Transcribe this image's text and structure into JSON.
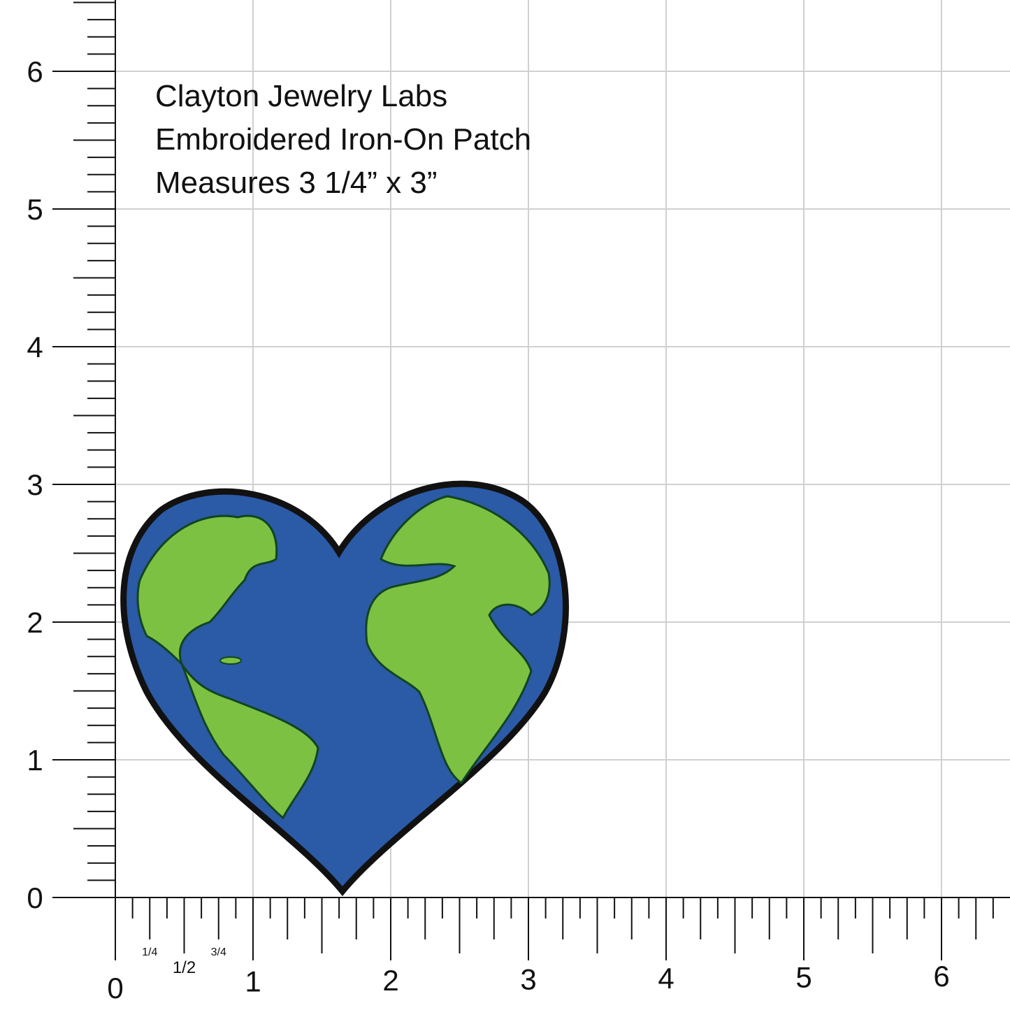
{
  "caption": {
    "lines": [
      "Clayton Jewelry Labs",
      "Embroidered Iron-On Patch",
      "Measures 3 1/4” x 3”"
    ]
  },
  "ruler": {
    "vertical_labels": [
      "0",
      "1",
      "2",
      "3",
      "4",
      "5",
      "6"
    ],
    "horizontal_labels": [
      "0",
      "1",
      "2",
      "3",
      "4",
      "5",
      "6"
    ],
    "fractions": [
      "1/4",
      "1/2",
      "3/4"
    ]
  }
}
